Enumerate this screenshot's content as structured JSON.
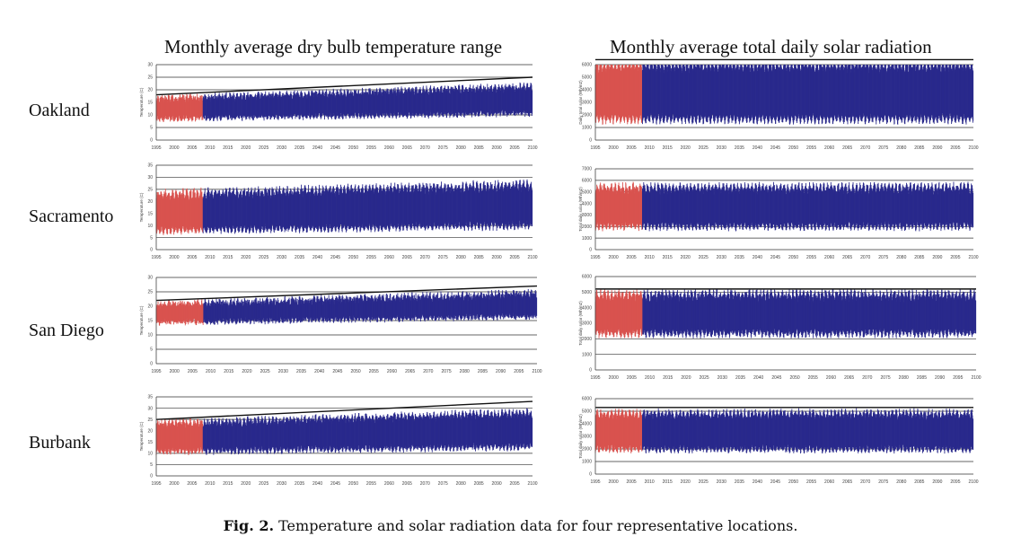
{
  "titles": {
    "left": "Monthly average dry bulb temperature range",
    "right": "Monthly average total daily solar radiation"
  },
  "rows": [
    "Oakland",
    "Sacramento",
    "San Diego",
    "Burbank"
  ],
  "caption": {
    "label": "Fig. 2.",
    "text": "Temperature and solar radiation data for four representative locations."
  },
  "colors": {
    "historical": "#d9534f",
    "projected": "#2a2a8c",
    "trend": "#111111"
  },
  "x_ticks": [
    "1995",
    "2000",
    "2005",
    "2010",
    "2015",
    "2020",
    "2025",
    "2030",
    "2035",
    "2040",
    "2045",
    "2050",
    "2055",
    "2060",
    "2065",
    "2070",
    "2075",
    "2080",
    "2085",
    "2090",
    "2095",
    "2100"
  ],
  "chart_data": [
    {
      "type": "line",
      "location": "Oakland",
      "metric": "temperature",
      "ylabel": "Temperature (C)",
      "yticks": [
        0,
        5,
        10,
        15,
        20,
        25,
        30
      ],
      "ylim": [
        0,
        30
      ],
      "xlim": [
        1995,
        2100
      ],
      "historical_end": 2008,
      "band": {
        "low_start": 8,
        "low_end": 10,
        "high_start": 17,
        "high_end": 22
      },
      "trend_line": [
        [
          1995,
          18
        ],
        [
          2100,
          25
        ]
      ],
      "grid": true
    },
    {
      "type": "line",
      "location": "Oakland",
      "metric": "solar",
      "ylabel": "Daily total solar (Wh/m2)",
      "yticks": [
        0,
        1000,
        2000,
        3000,
        4000,
        5000,
        6000
      ],
      "ylim": [
        0,
        6000
      ],
      "xlim": [
        1995,
        2100
      ],
      "historical_end": 2008,
      "band": {
        "low_start": 1400,
        "low_end": 1400,
        "high_start": 6300,
        "high_end": 6300
      },
      "trend_line": [
        [
          1995,
          6400
        ],
        [
          2100,
          6400
        ]
      ],
      "grid": true
    },
    {
      "type": "line",
      "location": "Sacramento",
      "metric": "temperature",
      "ylabel": "Temperature (C)",
      "yticks": [
        0,
        5,
        10,
        15,
        20,
        25,
        30,
        35
      ],
      "ylim": [
        0,
        35
      ],
      "xlim": [
        1995,
        2100
      ],
      "historical_end": 2008,
      "band": {
        "low_start": 7,
        "low_end": 9,
        "high_start": 24,
        "high_end": 28
      },
      "trend_line": null,
      "grid": true
    },
    {
      "type": "line",
      "location": "Sacramento",
      "metric": "solar",
      "ylabel": "Total daily solar (Wh/m2)",
      "yticks": [
        0,
        1000,
        2000,
        3000,
        4000,
        5000,
        6000,
        7000
      ],
      "ylim": [
        0,
        7000
      ],
      "xlim": [
        1995,
        2100
      ],
      "historical_end": 2008,
      "band": {
        "low_start": 1800,
        "low_end": 1800,
        "high_start": 5600,
        "high_end": 5600
      },
      "trend_line": null,
      "grid": true
    },
    {
      "type": "line",
      "location": "San Diego",
      "metric": "temperature",
      "ylabel": "Temperature (C)",
      "yticks": [
        0,
        5,
        10,
        15,
        20,
        25,
        30
      ],
      "ylim": [
        0,
        30
      ],
      "xlim": [
        1995,
        2100
      ],
      "historical_end": 2008,
      "band": {
        "low_start": 14,
        "low_end": 16,
        "high_start": 21,
        "high_end": 25
      },
      "trend_line": [
        [
          1995,
          22
        ],
        [
          2100,
          27
        ]
      ],
      "grid": true
    },
    {
      "type": "line",
      "location": "San Diego",
      "metric": "solar",
      "ylabel": "Total daily solar (Wh/m2)",
      "yticks": [
        0,
        1000,
        2000,
        3000,
        4000,
        5000,
        6000
      ],
      "ylim": [
        0,
        6000
      ],
      "xlim": [
        1995,
        2100
      ],
      "historical_end": 2008,
      "band": {
        "low_start": 2200,
        "low_end": 2200,
        "high_start": 5000,
        "high_end": 5000
      },
      "trend_line": [
        [
          1995,
          5200
        ],
        [
          2100,
          5200
        ]
      ],
      "grid": true
    },
    {
      "type": "line",
      "location": "Burbank",
      "metric": "temperature",
      "ylabel": "Temperature (C)",
      "yticks": [
        0,
        5,
        10,
        15,
        20,
        25,
        30,
        35
      ],
      "ylim": [
        0,
        35
      ],
      "xlim": [
        1995,
        2100
      ],
      "historical_end": 2008,
      "band": {
        "low_start": 10,
        "low_end": 12,
        "high_start": 24,
        "high_end": 29
      },
      "trend_line": [
        [
          1995,
          25
        ],
        [
          2100,
          33
        ]
      ],
      "grid": true
    },
    {
      "type": "line",
      "location": "Burbank",
      "metric": "solar",
      "ylabel": "Total daily solar (Wh/m2)",
      "yticks": [
        0,
        1000,
        2000,
        3000,
        4000,
        5000,
        6000
      ],
      "ylim": [
        0,
        6000
      ],
      "xlim": [
        1995,
        2100
      ],
      "historical_end": 2008,
      "band": {
        "low_start": 1800,
        "low_end": 1800,
        "high_start": 5000,
        "high_end": 5000
      },
      "trend_line": [
        [
          1995,
          5300
        ],
        [
          2100,
          5300
        ]
      ],
      "grid": true
    }
  ]
}
